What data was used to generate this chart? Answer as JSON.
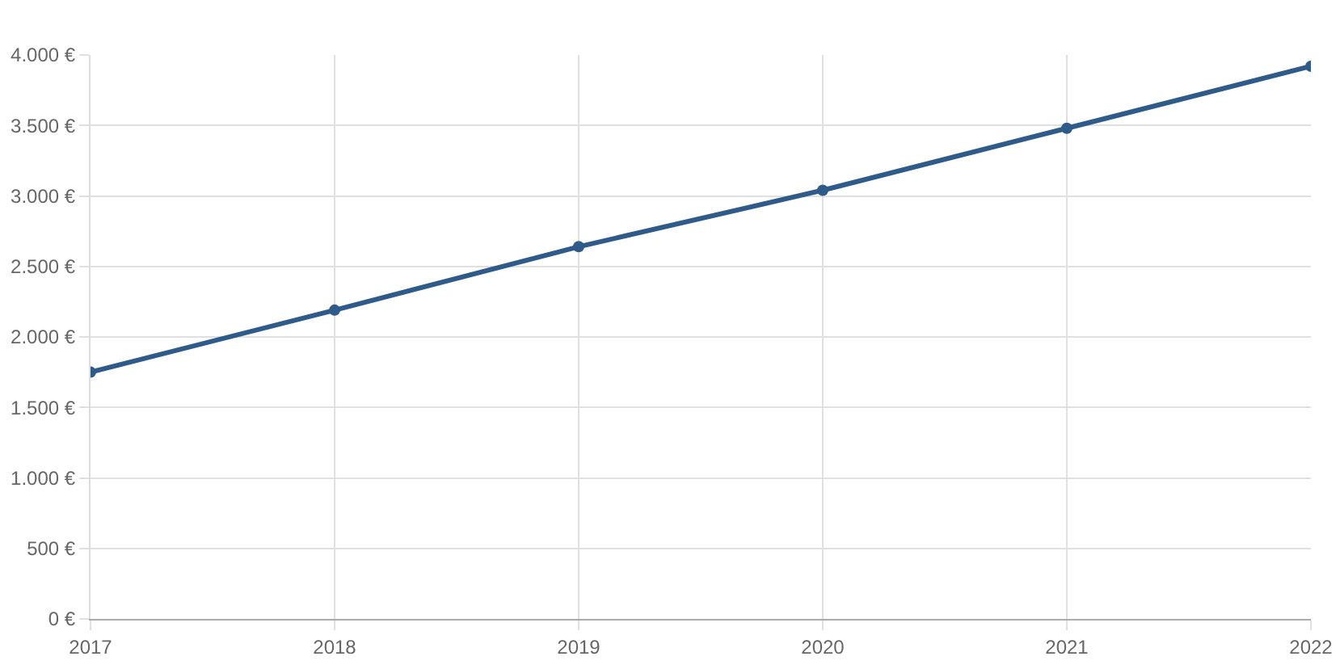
{
  "chart_data": {
    "type": "line",
    "x": [
      2017,
      2018,
      2019,
      2020,
      2021,
      2022
    ],
    "series": [
      {
        "color": "#2e5b8a",
        "values": [
          1750,
          2190,
          2640,
          3040,
          3480,
          3920
        ]
      }
    ],
    "xlim": [
      2017,
      2022
    ],
    "xticks": [
      2017,
      2018,
      2019,
      2020,
      2021,
      2022
    ],
    "ylim": [
      0,
      4000
    ],
    "yticks": [
      {
        "value": 0,
        "label": "0 €"
      },
      {
        "value": 500,
        "label": "500 €"
      },
      {
        "value": 1000,
        "label": "1.000 €"
      },
      {
        "value": 1500,
        "label": "1.500 €"
      },
      {
        "value": 2000,
        "label": "2.000 €"
      },
      {
        "value": 2500,
        "label": "2.500 €"
      },
      {
        "value": 3000,
        "label": "3.000 €"
      },
      {
        "value": 3500,
        "label": "3.500 €"
      },
      {
        "value": 4000,
        "label": "4.000 €"
      }
    ],
    "grid": true,
    "legend": false,
    "marker": "circle",
    "line_style": "solid"
  }
}
